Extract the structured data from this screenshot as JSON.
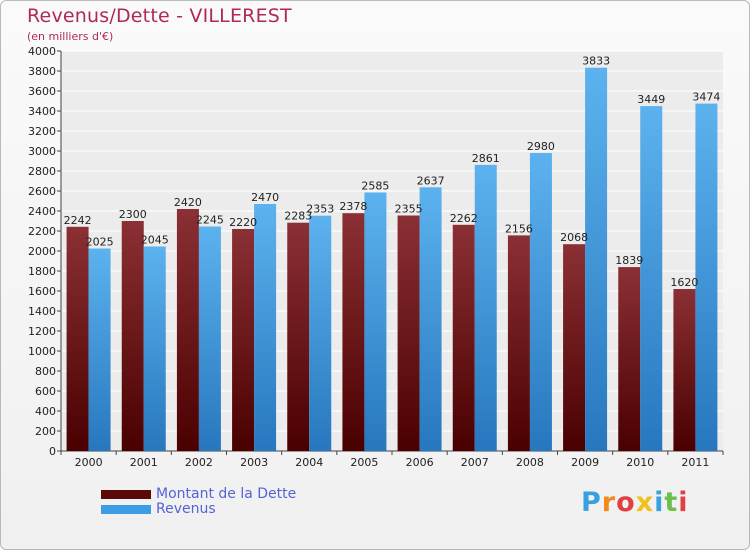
{
  "chart_data": {
    "type": "bar",
    "title": "Revenus/Dette - VILLEREST",
    "subtitle": "(en milliers d'€)",
    "categories": [
      "2000",
      "2001",
      "2002",
      "2003",
      "2004",
      "2005",
      "2006",
      "2007",
      "2008",
      "2009",
      "2010",
      "2011"
    ],
    "series": [
      {
        "name": "Montant de la Dette",
        "color": "#6b1010",
        "values": [
          2242,
          2300,
          2420,
          2220,
          2283,
          2378,
          2355,
          2262,
          2156,
          2068,
          1839,
          1620
        ]
      },
      {
        "name": "Revenus",
        "color": "#3d9de4",
        "values": [
          2025,
          2045,
          2245,
          2470,
          2353,
          2585,
          2637,
          2861,
          2980,
          3833,
          3449,
          3474
        ]
      }
    ],
    "ylim": [
      0,
      4000
    ],
    "ytick_step": 200,
    "grid": true,
    "legend_position": "bottom-left"
  },
  "brand": {
    "text": "Proxiti"
  }
}
